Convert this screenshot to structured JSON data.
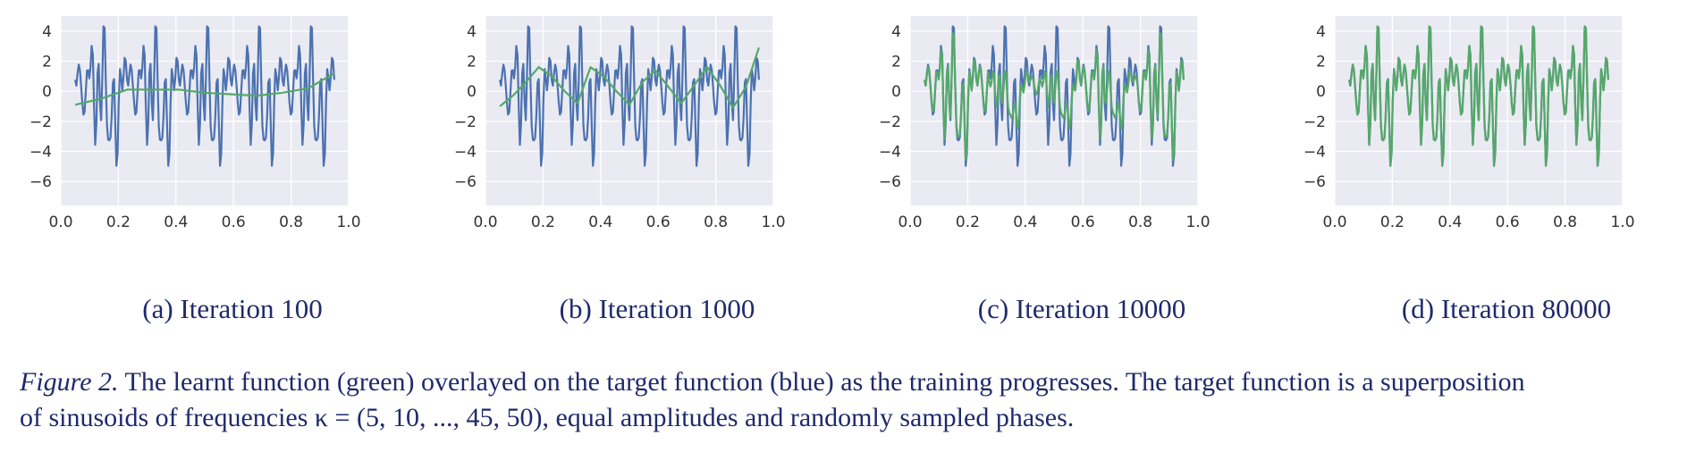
{
  "chart_data": [
    {
      "type": "line",
      "title": "(a) Iteration 100",
      "xlim": [
        0.0,
        1.0
      ],
      "ylim": [
        -7.6,
        5.0
      ],
      "xticks": [
        "0.0",
        "0.2",
        "0.4",
        "0.6",
        "0.8",
        "1.0"
      ],
      "yticks": [
        "4",
        "2",
        "0",
        "−2",
        "−4",
        "−6"
      ],
      "grid": true,
      "series": [
        {
          "role": "target",
          "color": "#4c72b0"
        },
        {
          "role": "learnt",
          "color": "#55a868",
          "x": [
            0.0,
            0.1,
            0.2,
            0.3,
            0.4,
            0.5,
            0.6,
            0.7,
            0.8,
            0.9,
            1.0
          ],
          "y": [
            -0.9,
            -0.5,
            0.1,
            0.1,
            0.1,
            -0.1,
            -0.2,
            -0.3,
            -0.1,
            0.2,
            1.2
          ]
        }
      ]
    },
    {
      "type": "line",
      "title": "(b) Iteration 1000",
      "xlim": [
        0.0,
        1.0
      ],
      "ylim": [
        -7.6,
        5.0
      ],
      "xticks": [
        "0.0",
        "0.2",
        "0.4",
        "0.6",
        "0.8",
        "1.0"
      ],
      "yticks": [
        "4",
        "2",
        "0",
        "−2",
        "−4",
        "−6"
      ],
      "grid": true,
      "series": [
        {
          "role": "target",
          "color": "#4c72b0"
        },
        {
          "role": "learnt",
          "color": "#55a868",
          "x": [
            0.0,
            0.05,
            0.1,
            0.15,
            0.2,
            0.25,
            0.3,
            0.35,
            0.4,
            0.45,
            0.5,
            0.55,
            0.6,
            0.65,
            0.7,
            0.75,
            0.8,
            0.85,
            0.9,
            0.95,
            1.0
          ],
          "y": [
            -1.0,
            -0.3,
            0.6,
            1.6,
            1.0,
            0.0,
            -0.8,
            1.6,
            1.0,
            0.0,
            -0.9,
            0.6,
            1.4,
            0.3,
            -0.8,
            0.4,
            1.6,
            0.4,
            -1.1,
            0.3,
            2.9
          ]
        }
      ]
    },
    {
      "type": "line",
      "title": "(c) Iteration 10000",
      "xlim": [
        0.0,
        1.0
      ],
      "ylim": [
        -7.6,
        5.0
      ],
      "xticks": [
        "0.0",
        "0.2",
        "0.4",
        "0.6",
        "0.8",
        "1.0"
      ],
      "yticks": [
        "4",
        "2",
        "0",
        "−2",
        "−4",
        "−6"
      ],
      "grid": true,
      "series": [
        {
          "role": "target",
          "color": "#4c72b0"
        },
        {
          "role": "learnt",
          "color": "#55a868",
          "fit": "partial"
        }
      ]
    },
    {
      "type": "line",
      "title": "(d) Iteration 80000",
      "xlim": [
        0.0,
        1.0
      ],
      "ylim": [
        -7.6,
        5.0
      ],
      "xticks": [
        "0.0",
        "0.2",
        "0.4",
        "0.6",
        "0.8",
        "1.0"
      ],
      "yticks": [
        "4",
        "2",
        "0",
        "−2",
        "−4",
        "−6"
      ],
      "grid": true,
      "series": [
        {
          "role": "target",
          "color": "#4c72b0"
        },
        {
          "role": "learnt",
          "color": "#55a868",
          "fit": "full"
        }
      ]
    }
  ],
  "figure_caption": {
    "label": "Figure 2.",
    "line1": " The learnt function (green) overlayed on the target function (blue) as the training progresses. The target function is a superposition",
    "line2": "of sinusoids of frequencies κ = (5, 10, ..., 45, 50), equal amplitudes and randomly sampled phases."
  },
  "colors": {
    "plot_background": "#eaeaf2",
    "grid": "#ffffff",
    "target": "#4c72b0",
    "learnt": "#55a868",
    "caption_text": "#1f2a6b"
  }
}
